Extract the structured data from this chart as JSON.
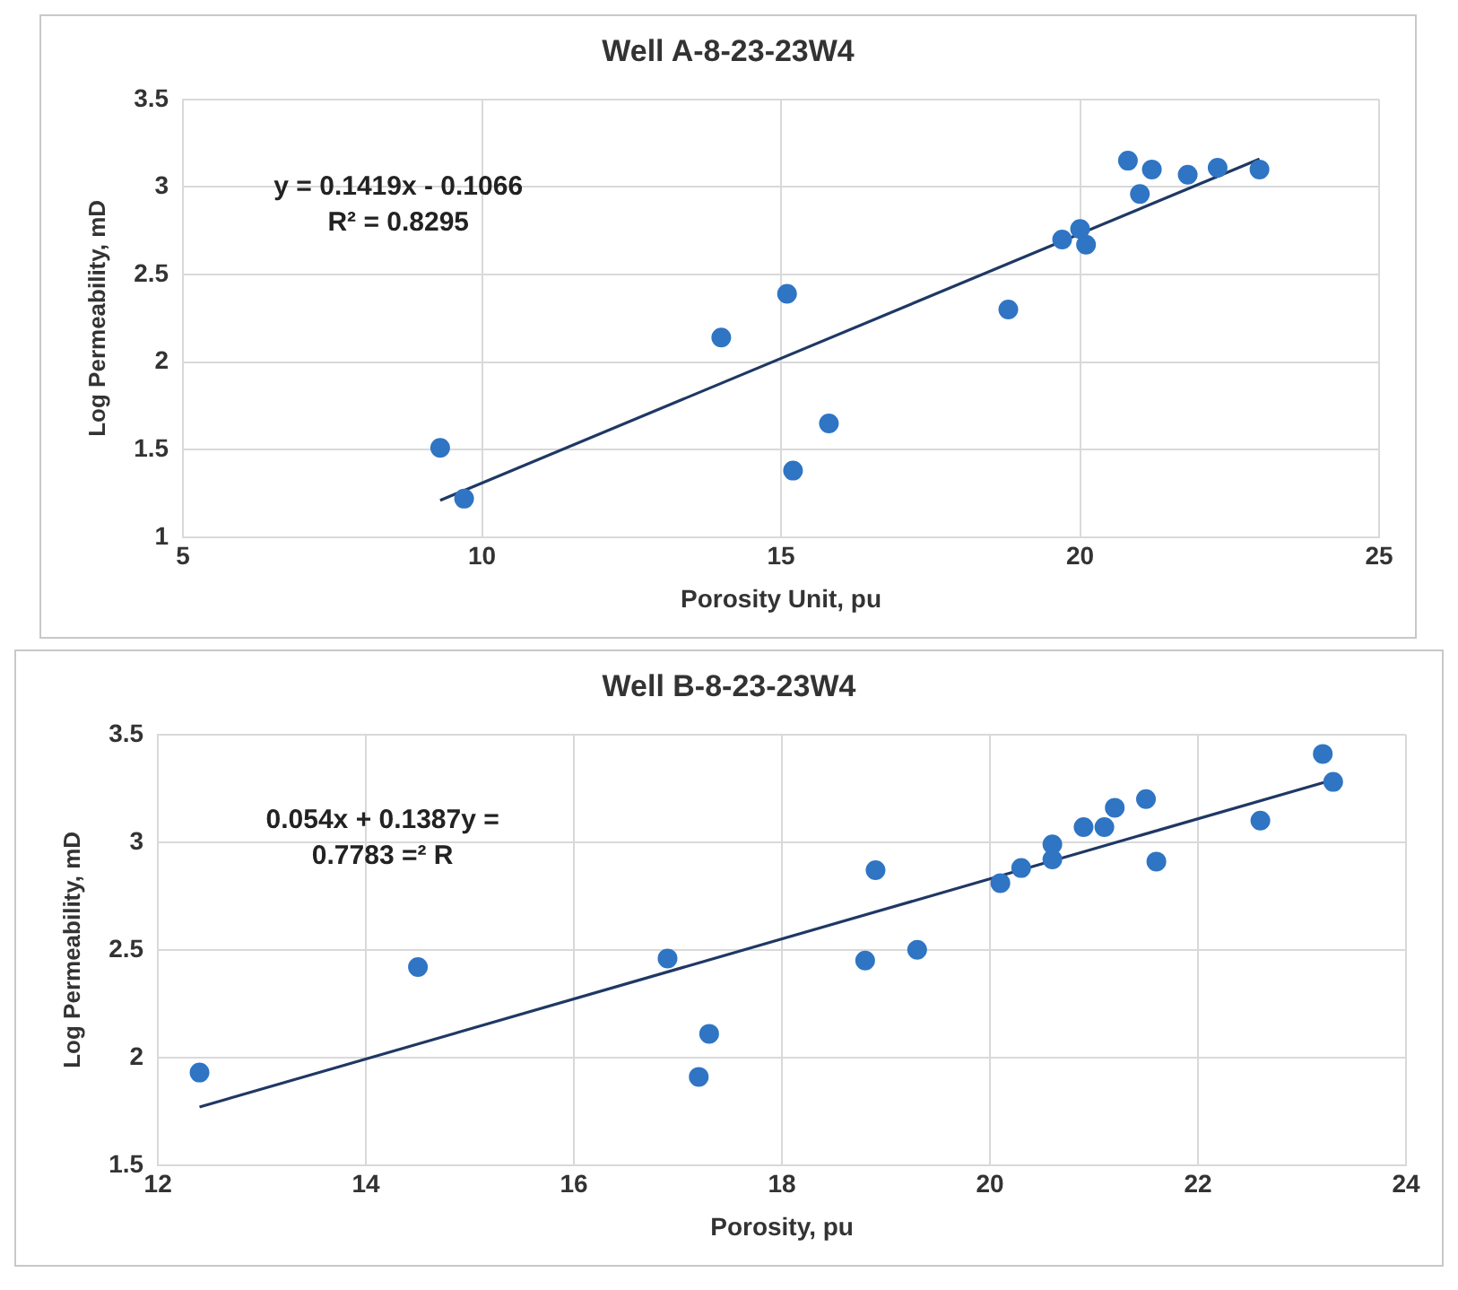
{
  "chart_data": [
    {
      "type": "scatter",
      "title": "Well A-8-23-23W4",
      "xlabel": "Porosity Unit, pu",
      "ylabel": "Log Permeability, mD",
      "xlim": [
        5,
        25
      ],
      "xticks": [
        5,
        10,
        15,
        20,
        25
      ],
      "ylim": [
        1,
        3.5
      ],
      "yticks": [
        1,
        1.5,
        2,
        2.5,
        3,
        3.5
      ],
      "grid": true,
      "legend": false,
      "marker": "circle",
      "annotations": [
        "y = 0.1419x - 0.1066",
        "R² = 0.8295"
      ],
      "series": [
        {
          "color": "#2f75c4",
          "x": [
            9.3,
            9.7,
            14,
            15.1,
            15.2,
            15.8,
            18.8,
            19.7,
            20,
            20.1,
            20.8,
            21,
            21.2,
            21.8,
            22.3,
            23
          ],
          "values": [
            1.51,
            1.22,
            2.14,
            2.39,
            1.38,
            1.65,
            2.3,
            2.7,
            2.76,
            2.67,
            3.15,
            2.96,
            3.1,
            3.07,
            3.11,
            3.1
          ]
        },
        {
          "type": "line",
          "color": "#1f3864",
          "marker": "none",
          "x": [
            9.3,
            23
          ],
          "values": [
            1.21,
            3.16
          ]
        }
      ]
    },
    {
      "type": "scatter",
      "title": "Well B-8-23-23W4",
      "xlabel": "Porosity, pu",
      "ylabel": "Log Permeability, mD",
      "xlim": [
        12,
        24
      ],
      "xticks": [
        12,
        14,
        16,
        18,
        20,
        22,
        24
      ],
      "ylim": [
        1.5,
        3.5
      ],
      "yticks": [
        1.5,
        2,
        2.5,
        3,
        3.5
      ],
      "grid": true,
      "legend": false,
      "marker": "circle",
      "annotations": [
        "0.054x + 0.1387y =",
        "0.7783 =² R"
      ],
      "series": [
        {
          "color": "#2f75c4",
          "x": [
            12.4,
            14.5,
            16.9,
            17.2,
            17.3,
            18.8,
            18.9,
            19.3,
            20.1,
            20.3,
            20.6,
            20.6,
            20.9,
            21.1,
            21.2,
            21.5,
            21.6,
            22.6,
            23.2,
            23.3
          ],
          "values": [
            1.93,
            2.42,
            2.46,
            1.91,
            2.11,
            2.45,
            2.87,
            2.5,
            2.81,
            2.88,
            2.99,
            2.92,
            3.07,
            3.07,
            3.16,
            3.2,
            2.91,
            3.1,
            3.41,
            3.28
          ]
        },
        {
          "type": "line",
          "color": "#1f3864",
          "marker": "none",
          "x": [
            12.4,
            23.3
          ],
          "values": [
            1.77,
            3.29
          ]
        }
      ]
    }
  ]
}
